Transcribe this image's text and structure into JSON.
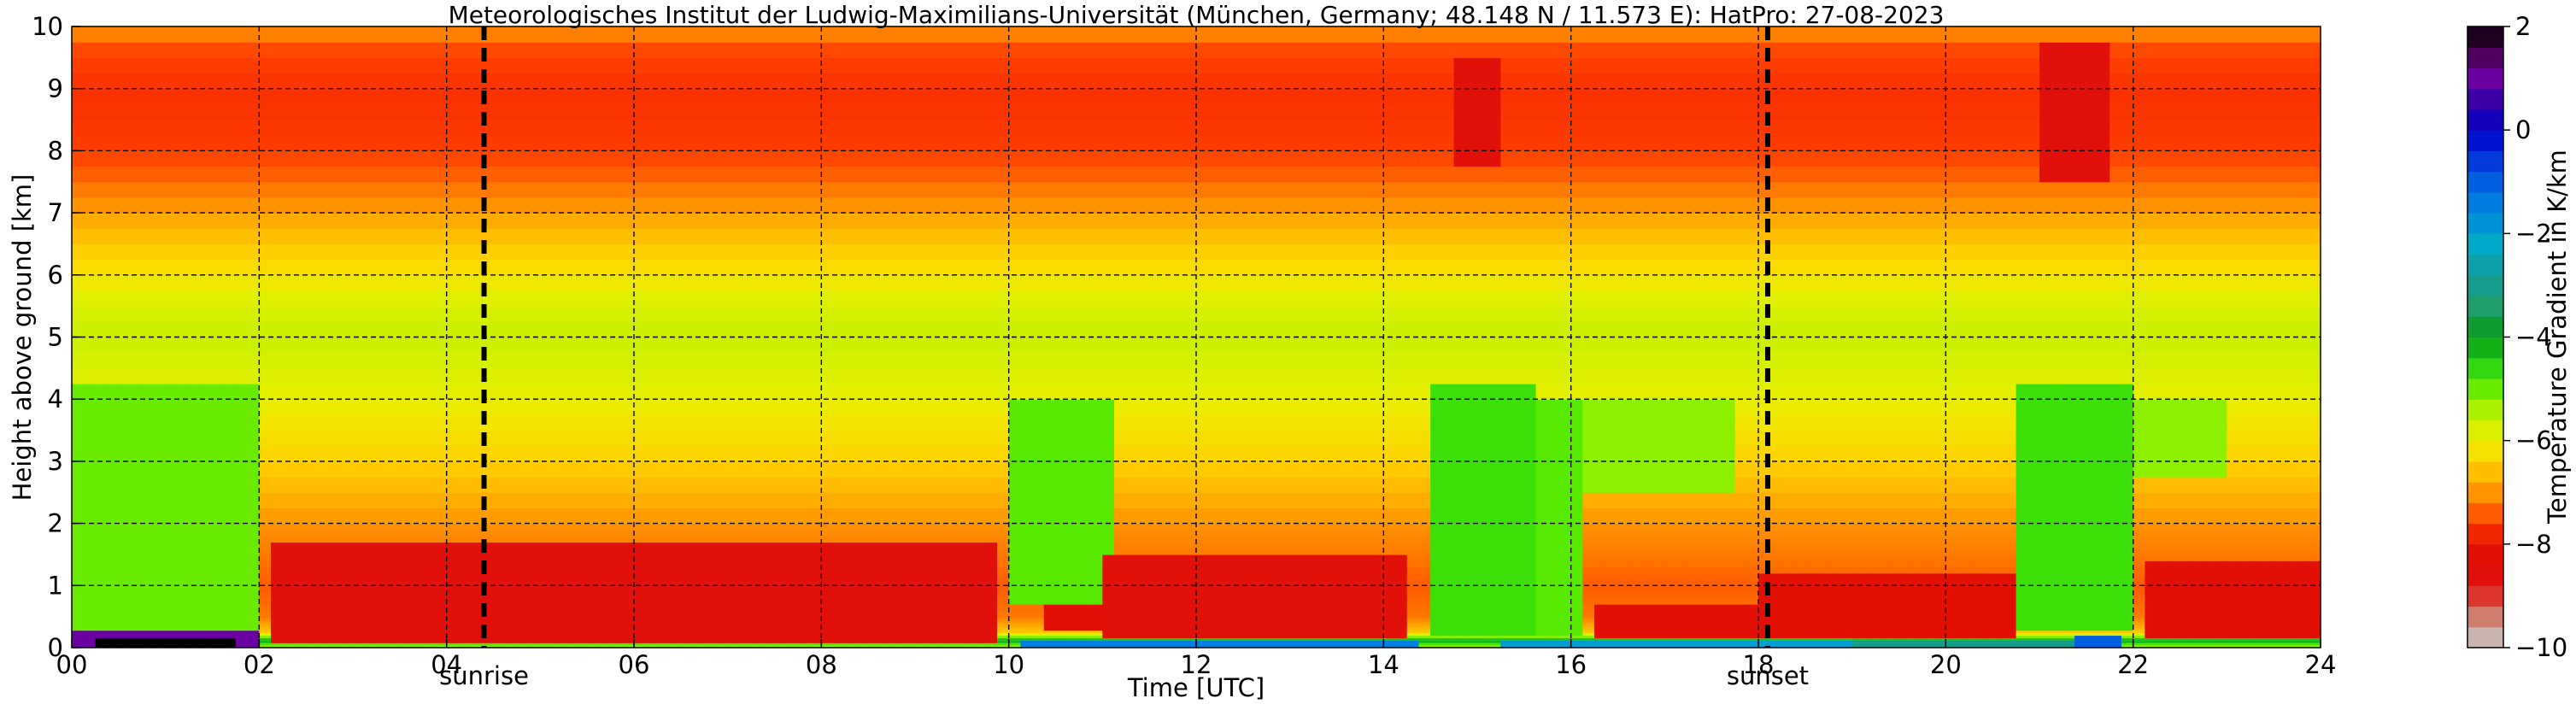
{
  "chart_data": {
    "type": "heatmap",
    "title": "Meteorologisches Institut der Ludwig-Maximilians-Universität (München, Germany; 48.148 N / 11.573 E):    HatPro: 27-08-2023",
    "xlabel": "Time [UTC]",
    "ylabel": "Height above ground [km]",
    "xlim": [
      0,
      24
    ],
    "ylim": [
      0,
      10
    ],
    "x_ticks": [
      "00",
      "02",
      "04",
      "06",
      "08",
      "10",
      "12",
      "14",
      "16",
      "18",
      "20",
      "22",
      "24"
    ],
    "y_ticks": [
      "0",
      "1",
      "2",
      "3",
      "4",
      "5",
      "6",
      "7",
      "8",
      "9",
      "10"
    ],
    "grid": true,
    "colorbar": {
      "label": "Temperature Gradient in K/km",
      "range": [
        -10,
        2
      ],
      "ticks": [
        "2",
        "0",
        "−2",
        "−4",
        "−6",
        "−8",
        "−10"
      ],
      "colors": [
        {
          "v": -10.0,
          "c": "#c9c9c9"
        },
        {
          "v": -9.6,
          "c": "#c8a090"
        },
        {
          "v": -9.2,
          "c": "#d85a4c"
        },
        {
          "v": -8.8,
          "c": "#e01010"
        },
        {
          "v": -8.0,
          "c": "#e20f00"
        },
        {
          "v": -7.6,
          "c": "#ff3c00"
        },
        {
          "v": -7.2,
          "c": "#ff7a00"
        },
        {
          "v": -6.8,
          "c": "#ffab00"
        },
        {
          "v": -6.4,
          "c": "#ffd200"
        },
        {
          "v": -6.0,
          "c": "#e8ef00"
        },
        {
          "v": -5.6,
          "c": "#c8f000"
        },
        {
          "v": -5.2,
          "c": "#8cf000"
        },
        {
          "v": -4.8,
          "c": "#46e600"
        },
        {
          "v": -4.4,
          "c": "#1ec81e"
        },
        {
          "v": -4.0,
          "c": "#0a9a14"
        },
        {
          "v": -3.4,
          "c": "#1d9e6a"
        },
        {
          "v": -2.8,
          "c": "#129b9b"
        },
        {
          "v": -2.2,
          "c": "#00a9c8"
        },
        {
          "v": -1.6,
          "c": "#0088e0"
        },
        {
          "v": -1.0,
          "c": "#0060e0"
        },
        {
          "v": -0.5,
          "c": "#0030d8"
        },
        {
          "v": 0.0,
          "c": "#0000c8"
        },
        {
          "v": 0.5,
          "c": "#3000a8"
        },
        {
          "v": 1.0,
          "c": "#6a00a0"
        },
        {
          "v": 1.5,
          "c": "#4a0050"
        },
        {
          "v": 2.0,
          "c": "#000000"
        }
      ]
    },
    "annotations": [
      {
        "label": "sunrise",
        "x": 4.4
      },
      {
        "label": "sunset",
        "x": 18.1
      }
    ],
    "field": {
      "base_profile": [
        {
          "h": 0.0,
          "v": -5.5
        },
        {
          "h": 0.05,
          "v": -5.0
        },
        {
          "h": 0.12,
          "v": -4.0
        },
        {
          "h": 0.25,
          "v": -6.5
        },
        {
          "h": 0.5,
          "v": -7.2
        },
        {
          "h": 1.0,
          "v": -7.4
        },
        {
          "h": 2.0,
          "v": -7.0
        },
        {
          "h": 3.0,
          "v": -6.4
        },
        {
          "h": 4.0,
          "v": -6.0
        },
        {
          "h": 5.0,
          "v": -5.6
        },
        {
          "h": 5.5,
          "v": -5.8
        },
        {
          "h": 6.0,
          "v": -6.2
        },
        {
          "h": 6.5,
          "v": -6.5
        },
        {
          "h": 7.0,
          "v": -6.9
        },
        {
          "h": 7.5,
          "v": -7.3
        },
        {
          "h": 8.0,
          "v": -7.6
        },
        {
          "h": 9.0,
          "v": -7.7
        },
        {
          "h": 9.7,
          "v": -7.5
        },
        {
          "h": 10.0,
          "v": -6.9
        }
      ],
      "stable_layers": [
        {
          "x0": 0.0,
          "x1": 2.05,
          "h0": 0.0,
          "h1": 0.3,
          "v": 1.0
        },
        {
          "x0": 0.3,
          "x1": 1.8,
          "h0": 0.0,
          "h1": 0.15,
          "v": 2.0
        },
        {
          "x0": 10.1,
          "x1": 14.4,
          "h0": 0.0,
          "h1": 0.12,
          "v": -1.5
        },
        {
          "x0": 15.2,
          "x1": 19.0,
          "h0": 0.0,
          "h1": 0.13,
          "v": -2.0
        },
        {
          "x0": 19.0,
          "x1": 21.5,
          "h0": 0.0,
          "h1": 0.1,
          "v": -3.0
        },
        {
          "x0": 21.4,
          "x1": 21.9,
          "h0": 0.0,
          "h1": 0.2,
          "v": -1.0
        }
      ],
      "unstable_regions": [
        {
          "x0": 2.1,
          "x1": 9.9,
          "h0": 0.1,
          "h1": 1.75,
          "v": -8.5
        },
        {
          "x0": 10.4,
          "x1": 11.2,
          "h0": 0.3,
          "h1": 0.65,
          "v": -8.3
        },
        {
          "x0": 11.0,
          "x1": 14.3,
          "h0": 0.15,
          "h1": 1.55,
          "v": -8.4
        },
        {
          "x0": 16.2,
          "x1": 18.0,
          "h0": 0.15,
          "h1": 0.7,
          "v": -8.3
        },
        {
          "x0": 18.0,
          "x1": 20.8,
          "h0": 0.15,
          "h1": 1.2,
          "v": -8.1
        },
        {
          "x0": 22.1,
          "x1": 24.0,
          "h0": 0.15,
          "h1": 1.35,
          "v": -8.3
        },
        {
          "x0": 14.7,
          "x1": 15.3,
          "h0": 7.7,
          "h1": 9.6,
          "v": -8.4
        },
        {
          "x0": 21.0,
          "x1": 21.7,
          "h0": 7.5,
          "h1": 9.8,
          "v": -8.5
        }
      ],
      "convective_regions": [
        {
          "x0": 0.0,
          "x1": 2.0,
          "h0": 0.3,
          "h1": 4.2,
          "v": -5.0
        },
        {
          "x0": 10.0,
          "x1": 11.1,
          "h0": 0.7,
          "h1": 4.1,
          "v": -4.9
        },
        {
          "x0": 14.5,
          "x1": 15.6,
          "h0": 0.2,
          "h1": 4.2,
          "v": -4.7
        },
        {
          "x0": 15.5,
          "x1": 16.1,
          "h0": 0.2,
          "h1": 4.0,
          "v": -4.9
        },
        {
          "x0": 16.0,
          "x1": 17.7,
          "h0": 2.6,
          "h1": 4.0,
          "v": -5.2
        },
        {
          "x0": 20.8,
          "x1": 22.0,
          "h0": 0.3,
          "h1": 4.2,
          "v": -4.7
        },
        {
          "x0": 22.0,
          "x1": 23.0,
          "h0": 2.7,
          "h1": 3.9,
          "v": -5.2
        }
      ]
    }
  }
}
